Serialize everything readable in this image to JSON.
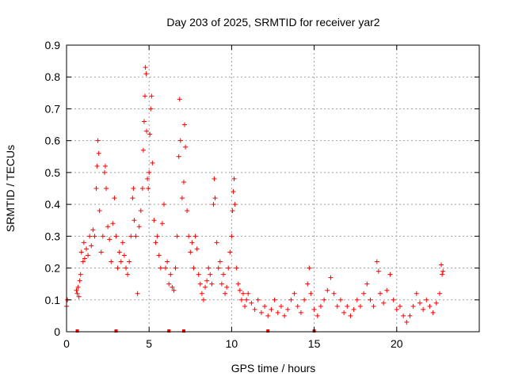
{
  "chart_data": {
    "type": "scatter",
    "title": "Day 203 of 2025, SRMTID for receiver yar2",
    "xlabel": "GPS time / hours",
    "ylabel": "SRMTID / TECUs",
    "xlim": [
      0,
      25
    ],
    "ylim": [
      0,
      0.9
    ],
    "x_ticks": [
      0,
      5,
      10,
      15,
      20
    ],
    "x_tick_labels": [
      "0",
      "5",
      "10",
      "15",
      "20"
    ],
    "y_ticks": [
      0,
      0.1,
      0.2,
      0.3,
      0.4,
      0.5,
      0.6,
      0.7,
      0.8,
      0.9
    ],
    "y_tick_labels": [
      "0",
      "0.1",
      "0.2",
      "0.3",
      "0.4",
      "0.5",
      "0.6",
      "0.7",
      "0.8",
      "0.9"
    ],
    "grid": true,
    "marker": "+",
    "series": [
      {
        "name": "SRMTID",
        "color": "#ff0000",
        "points": [
          [
            0.0,
            0.08
          ],
          [
            0.05,
            0.1
          ],
          [
            0.6,
            0.13
          ],
          [
            0.65,
            0.12
          ],
          [
            0.7,
            0.14
          ],
          [
            0.75,
            0.11
          ],
          [
            0.8,
            0.16
          ],
          [
            0.85,
            0.18
          ],
          [
            0.9,
            0.25
          ],
          [
            1.0,
            0.22
          ],
          [
            1.05,
            0.28
          ],
          [
            1.1,
            0.23
          ],
          [
            1.2,
            0.26
          ],
          [
            1.3,
            0.24
          ],
          [
            1.4,
            0.3
          ],
          [
            1.5,
            0.27
          ],
          [
            1.6,
            0.32
          ],
          [
            1.7,
            0.3
          ],
          [
            1.8,
            0.45
          ],
          [
            1.85,
            0.52
          ],
          [
            1.9,
            0.6
          ],
          [
            1.95,
            0.56
          ],
          [
            2.0,
            0.38
          ],
          [
            2.1,
            0.25
          ],
          [
            2.2,
            0.3
          ],
          [
            2.3,
            0.5
          ],
          [
            2.35,
            0.52
          ],
          [
            2.4,
            0.45
          ],
          [
            2.5,
            0.33
          ],
          [
            2.6,
            0.29
          ],
          [
            2.7,
            0.22
          ],
          [
            2.8,
            0.34
          ],
          [
            2.9,
            0.42
          ],
          [
            3.0,
            0.3
          ],
          [
            3.1,
            0.2
          ],
          [
            3.2,
            0.25
          ],
          [
            3.3,
            0.22
          ],
          [
            3.4,
            0.28
          ],
          [
            3.5,
            0.24
          ],
          [
            3.6,
            0.2
          ],
          [
            3.7,
            0.18
          ],
          [
            3.8,
            0.22
          ],
          [
            3.9,
            0.3
          ],
          [
            4.0,
            0.42
          ],
          [
            4.05,
            0.45
          ],
          [
            4.1,
            0.35
          ],
          [
            4.2,
            0.3
          ],
          [
            4.3,
            0.12
          ],
          [
            4.4,
            0.33
          ],
          [
            4.5,
            0.38
          ],
          [
            4.6,
            0.45
          ],
          [
            4.65,
            0.57
          ],
          [
            4.7,
            0.66
          ],
          [
            4.75,
            0.74
          ],
          [
            4.78,
            0.83
          ],
          [
            4.82,
            0.81
          ],
          [
            4.85,
            0.63
          ],
          [
            4.9,
            0.48
          ],
          [
            4.95,
            0.45
          ],
          [
            5.0,
            0.5
          ],
          [
            5.05,
            0.62
          ],
          [
            5.1,
            0.7
          ],
          [
            5.15,
            0.74
          ],
          [
            5.2,
            0.53
          ],
          [
            5.3,
            0.35
          ],
          [
            5.4,
            0.28
          ],
          [
            5.5,
            0.3
          ],
          [
            5.6,
            0.24
          ],
          [
            5.7,
            0.2
          ],
          [
            5.8,
            0.34
          ],
          [
            5.9,
            0.4
          ],
          [
            6.0,
            0.2
          ],
          [
            6.1,
            0.22
          ],
          [
            6.2,
            0.15
          ],
          [
            6.3,
            0.18
          ],
          [
            6.4,
            0.14
          ],
          [
            6.5,
            0.13
          ],
          [
            6.6,
            0.2
          ],
          [
            6.7,
            0.3
          ],
          [
            6.8,
            0.55
          ],
          [
            6.85,
            0.73
          ],
          [
            6.9,
            0.6
          ],
          [
            7.0,
            0.42
          ],
          [
            7.1,
            0.47
          ],
          [
            7.15,
            0.65
          ],
          [
            7.2,
            0.58
          ],
          [
            7.3,
            0.38
          ],
          [
            7.4,
            0.3
          ],
          [
            7.5,
            0.25
          ],
          [
            7.6,
            0.28
          ],
          [
            7.7,
            0.2
          ],
          [
            7.8,
            0.3
          ],
          [
            7.9,
            0.26
          ],
          [
            8.0,
            0.18
          ],
          [
            8.1,
            0.15
          ],
          [
            8.2,
            0.12
          ],
          [
            8.3,
            0.1
          ],
          [
            8.4,
            0.14
          ],
          [
            8.5,
            0.16
          ],
          [
            8.6,
            0.2
          ],
          [
            8.7,
            0.18
          ],
          [
            8.8,
            0.15
          ],
          [
            8.9,
            0.4
          ],
          [
            8.95,
            0.48
          ],
          [
            9.0,
            0.42
          ],
          [
            9.1,
            0.28
          ],
          [
            9.2,
            0.2
          ],
          [
            9.3,
            0.22
          ],
          [
            9.4,
            0.15
          ],
          [
            9.5,
            0.18
          ],
          [
            9.6,
            0.12
          ],
          [
            9.7,
            0.14
          ],
          [
            9.8,
            0.2
          ],
          [
            9.9,
            0.25
          ],
          [
            10.0,
            0.3
          ],
          [
            10.05,
            0.38
          ],
          [
            10.1,
            0.44
          ],
          [
            10.15,
            0.48
          ],
          [
            10.2,
            0.4
          ],
          [
            10.3,
            0.2
          ],
          [
            10.4,
            0.15
          ],
          [
            10.5,
            0.13
          ],
          [
            10.6,
            0.1
          ],
          [
            10.7,
            0.12
          ],
          [
            10.8,
            0.08
          ],
          [
            10.9,
            0.1
          ],
          [
            11.0,
            0.12
          ],
          [
            11.2,
            0.09
          ],
          [
            11.4,
            0.07
          ],
          [
            11.6,
            0.1
          ],
          [
            11.8,
            0.06
          ],
          [
            12.0,
            0.08
          ],
          [
            12.2,
            0.05
          ],
          [
            12.4,
            0.07
          ],
          [
            12.6,
            0.1
          ],
          [
            12.8,
            0.06
          ],
          [
            13.0,
            0.08
          ],
          [
            13.2,
            0.05
          ],
          [
            13.4,
            0.07
          ],
          [
            13.6,
            0.1
          ],
          [
            13.8,
            0.12
          ],
          [
            14.0,
            0.08
          ],
          [
            14.2,
            0.06
          ],
          [
            14.4,
            0.1
          ],
          [
            14.6,
            0.15
          ],
          [
            14.7,
            0.2
          ],
          [
            14.8,
            0.12
          ],
          [
            15.0,
            0.07
          ],
          [
            15.2,
            0.05
          ],
          [
            15.4,
            0.08
          ],
          [
            15.6,
            0.1
          ],
          [
            15.8,
            0.13
          ],
          [
            16.0,
            0.17
          ],
          [
            16.2,
            0.12
          ],
          [
            16.4,
            0.08
          ],
          [
            16.6,
            0.1
          ],
          [
            16.8,
            0.06
          ],
          [
            17.0,
            0.08
          ],
          [
            17.2,
            0.05
          ],
          [
            17.4,
            0.07
          ],
          [
            17.6,
            0.1
          ],
          [
            17.8,
            0.08
          ],
          [
            18.0,
            0.12
          ],
          [
            18.2,
            0.15
          ],
          [
            18.4,
            0.1
          ],
          [
            18.6,
            0.08
          ],
          [
            18.8,
            0.22
          ],
          [
            18.9,
            0.19
          ],
          [
            19.0,
            0.12
          ],
          [
            19.2,
            0.09
          ],
          [
            19.4,
            0.13
          ],
          [
            19.6,
            0.18
          ],
          [
            19.8,
            0.1
          ],
          [
            20.0,
            0.07
          ],
          [
            20.2,
            0.08
          ],
          [
            20.4,
            0.05
          ],
          [
            20.6,
            0.03
          ],
          [
            20.8,
            0.05
          ],
          [
            21.0,
            0.08
          ],
          [
            21.2,
            0.12
          ],
          [
            21.4,
            0.09
          ],
          [
            21.6,
            0.07
          ],
          [
            21.8,
            0.1
          ],
          [
            22.0,
            0.08
          ],
          [
            22.2,
            0.06
          ],
          [
            22.4,
            0.09
          ],
          [
            22.6,
            0.12
          ],
          [
            22.7,
            0.21
          ],
          [
            22.75,
            0.18
          ],
          [
            22.8,
            0.19
          ]
        ]
      }
    ],
    "axis_markers_x": [
      0.65,
      3.0,
      6.2,
      7.1,
      12.2,
      15.0
    ]
  }
}
